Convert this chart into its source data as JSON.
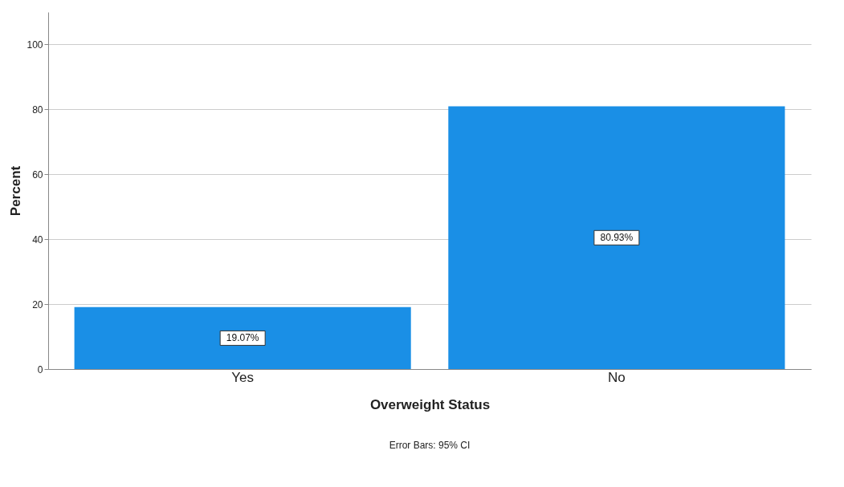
{
  "chart_data": {
    "type": "bar",
    "categories": [
      "Yes",
      "No"
    ],
    "values": [
      19.07,
      80.93
    ],
    "color": "#1a8fe6",
    "value_labels": [
      "19.07%",
      "80.93%"
    ],
    "xlabel": "Overweight Status",
    "ylabel": "Percent",
    "ylim": [
      0,
      110
    ],
    "yticks": [
      0,
      20,
      40,
      60,
      80,
      100
    ],
    "grid": "y",
    "annotations": [
      "Error Bars: 95% CI"
    ]
  }
}
